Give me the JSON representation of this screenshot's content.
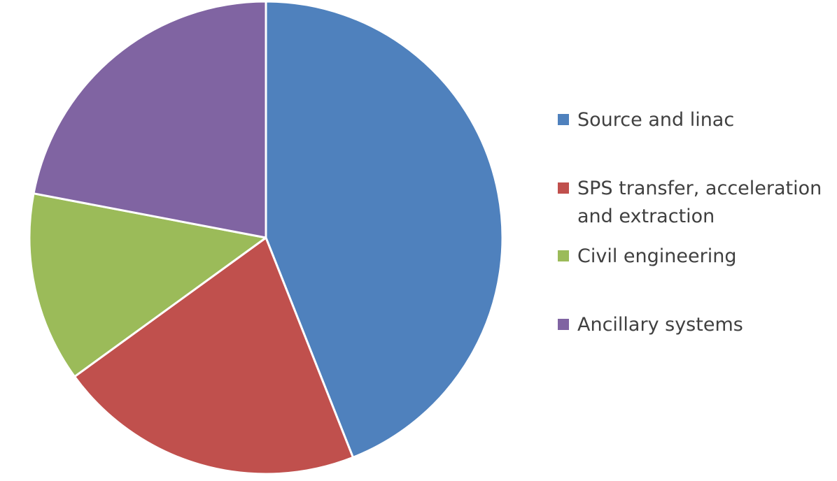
{
  "chart_data": {
    "type": "pie",
    "title": "",
    "slices": [
      {
        "label": "Source and linac",
        "value": 44,
        "color": "#4f81bd"
      },
      {
        "label": "SPS transfer, acceleration and extraction",
        "value": 21,
        "color": "#c0504d"
      },
      {
        "label": "Civil engineering",
        "value": 13,
        "color": "#9bbb59"
      },
      {
        "label": "Ancillary systems",
        "value": 22,
        "color": "#8064a2"
      }
    ],
    "start_angle_deg": 0,
    "direction": "clockwise",
    "legend_position": "right"
  }
}
